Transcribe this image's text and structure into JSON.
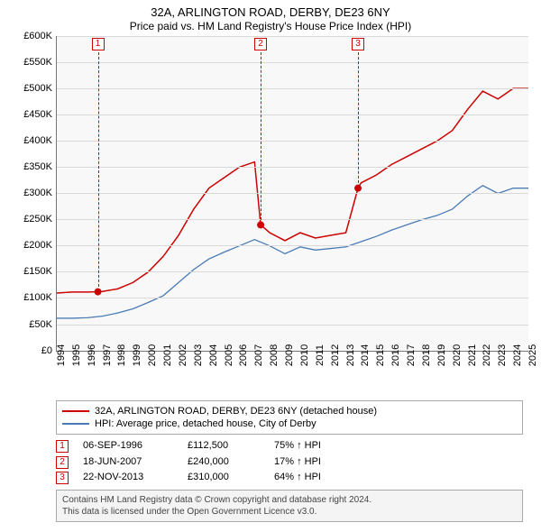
{
  "title": "32A, ARLINGTON ROAD, DERBY, DE23 6NY",
  "subtitle": "Price paid vs. HM Land Registry's House Price Index (HPI)",
  "chart": {
    "type": "line",
    "background_color": "#f8f8f8",
    "grid_color": "#d9d9d9",
    "axis_color": "#777777",
    "ylim": [
      0,
      600000
    ],
    "ytick_step": 50000,
    "ytick_prefix": "£",
    "ytick_suffix": "K",
    "y_fontsize": 11,
    "xlim": [
      1994,
      2025
    ],
    "xtick_step": 1,
    "xtick_rotation": -90,
    "x_fontsize": 11,
    "series": [
      {
        "name": "property",
        "label": "32A, ARLINGTON ROAD, DERBY, DE23 6NY (detached house)",
        "color": "#cc0000",
        "line_width": 1.5,
        "points": [
          [
            1994,
            110000
          ],
          [
            1995,
            112000
          ],
          [
            1996,
            112000
          ],
          [
            1996.7,
            112500
          ],
          [
            1997,
            113000
          ],
          [
            1998,
            118000
          ],
          [
            1999,
            130000
          ],
          [
            2000,
            150000
          ],
          [
            2001,
            180000
          ],
          [
            2002,
            220000
          ],
          [
            2003,
            270000
          ],
          [
            2004,
            310000
          ],
          [
            2005,
            330000
          ],
          [
            2006,
            350000
          ],
          [
            2007,
            360000
          ],
          [
            2007.4,
            240000
          ],
          [
            2008,
            225000
          ],
          [
            2009,
            210000
          ],
          [
            2010,
            225000
          ],
          [
            2011,
            215000
          ],
          [
            2012,
            220000
          ],
          [
            2013,
            225000
          ],
          [
            2013.8,
            310000
          ],
          [
            2014,
            320000
          ],
          [
            2015,
            335000
          ],
          [
            2016,
            355000
          ],
          [
            2017,
            370000
          ],
          [
            2018,
            385000
          ],
          [
            2019,
            400000
          ],
          [
            2020,
            420000
          ],
          [
            2021,
            460000
          ],
          [
            2022,
            495000
          ],
          [
            2023,
            480000
          ],
          [
            2024,
            500000
          ],
          [
            2025,
            500000
          ]
        ]
      },
      {
        "name": "hpi",
        "label": "HPI: Average price, detached house, City of Derby",
        "color": "#4a7bb5",
        "line_width": 1.3,
        "points": [
          [
            1994,
            62000
          ],
          [
            1995,
            62000
          ],
          [
            1996,
            63000
          ],
          [
            1997,
            66000
          ],
          [
            1998,
            72000
          ],
          [
            1999,
            80000
          ],
          [
            2000,
            92000
          ],
          [
            2001,
            105000
          ],
          [
            2002,
            130000
          ],
          [
            2003,
            155000
          ],
          [
            2004,
            175000
          ],
          [
            2005,
            188000
          ],
          [
            2006,
            200000
          ],
          [
            2007,
            212000
          ],
          [
            2008,
            200000
          ],
          [
            2009,
            185000
          ],
          [
            2010,
            198000
          ],
          [
            2011,
            192000
          ],
          [
            2012,
            195000
          ],
          [
            2013,
            198000
          ],
          [
            2014,
            208000
          ],
          [
            2015,
            218000
          ],
          [
            2016,
            230000
          ],
          [
            2017,
            240000
          ],
          [
            2018,
            250000
          ],
          [
            2019,
            258000
          ],
          [
            2020,
            270000
          ],
          [
            2021,
            295000
          ],
          [
            2022,
            315000
          ],
          [
            2023,
            300000
          ],
          [
            2024,
            310000
          ],
          [
            2025,
            310000
          ]
        ]
      }
    ],
    "sales": [
      {
        "n": "1",
        "year": 1996.7,
        "price": 112500
      },
      {
        "n": "2",
        "year": 2007.4,
        "price": 240000
      },
      {
        "n": "3",
        "year": 2013.8,
        "price": 310000
      }
    ],
    "sale_marker_color": "#cc0000",
    "sale_dot_fill": "#cc0000"
  },
  "legend": {
    "border_color": "#aaaaaa",
    "fontsize": 11
  },
  "transactions": [
    {
      "n": "1",
      "date": "06-SEP-1996",
      "price": "£112,500",
      "pct": "75% ↑ HPI"
    },
    {
      "n": "2",
      "date": "18-JUN-2007",
      "price": "£240,000",
      "pct": "17% ↑ HPI"
    },
    {
      "n": "3",
      "date": "22-NOV-2013",
      "price": "£310,000",
      "pct": "64% ↑ HPI"
    }
  ],
  "footer": {
    "line1": "Contains HM Land Registry data © Crown copyright and database right 2024.",
    "line2": "This data is licensed under the Open Government Licence v3.0.",
    "background_color": "#f4f4f4",
    "border_color": "#aaaaaa",
    "fontsize": 10
  }
}
